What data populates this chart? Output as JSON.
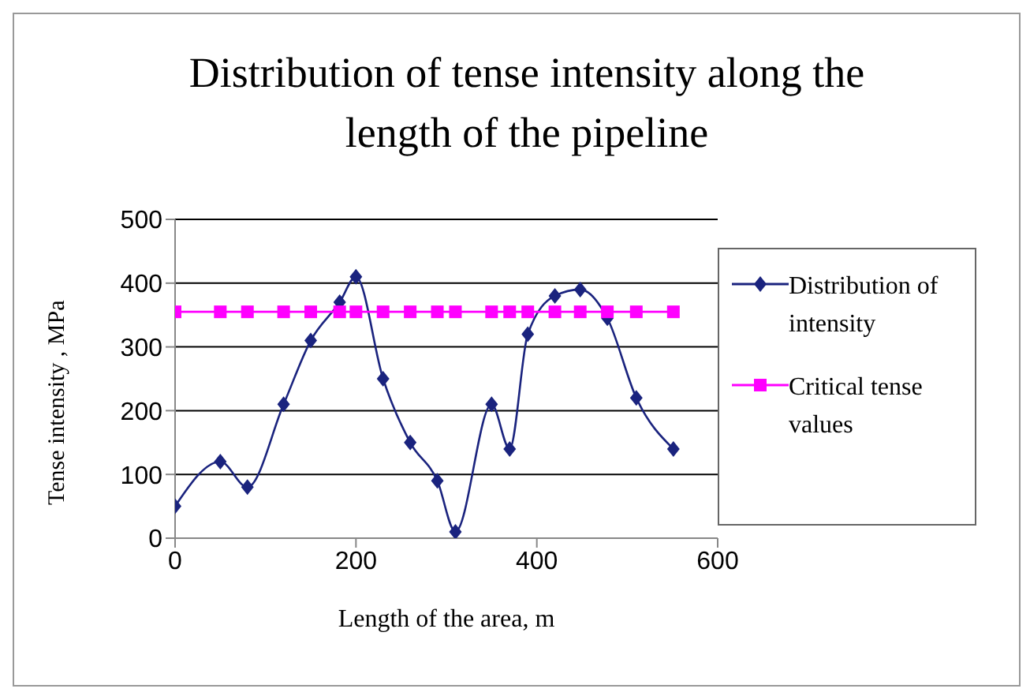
{
  "chart_data": {
    "type": "line",
    "title": "Distribution of tense intensity along the length of the pipeline",
    "xlabel": "Length of the area, m",
    "ylabel": "Tense intensity , MPa",
    "x": [
      0,
      50,
      80,
      120,
      150,
      182,
      200,
      230,
      260,
      290,
      310,
      350,
      370,
      390,
      420,
      448,
      478,
      510,
      551
    ],
    "series": [
      {
        "name": "Distribution of intensity",
        "color": "#1a237e",
        "marker": "diamond",
        "values": [
          50,
          120,
          80,
          210,
          310,
          370,
          410,
          250,
          150,
          90,
          10,
          210,
          140,
          320,
          380,
          390,
          345,
          220,
          140
        ]
      },
      {
        "name": "Critical tense values",
        "color": "#ff00ff",
        "marker": "square",
        "values": [
          355,
          355,
          355,
          355,
          355,
          355,
          355,
          355,
          355,
          355,
          355,
          355,
          355,
          355,
          355,
          355,
          355,
          355,
          355
        ]
      }
    ],
    "xlim": [
      0,
      600
    ],
    "xticks": [
      0,
      200,
      400,
      600
    ],
    "ylim": [
      0,
      500
    ],
    "yticks": [
      0,
      100,
      200,
      300,
      400,
      500
    ],
    "grid": "y",
    "legend": "right"
  }
}
